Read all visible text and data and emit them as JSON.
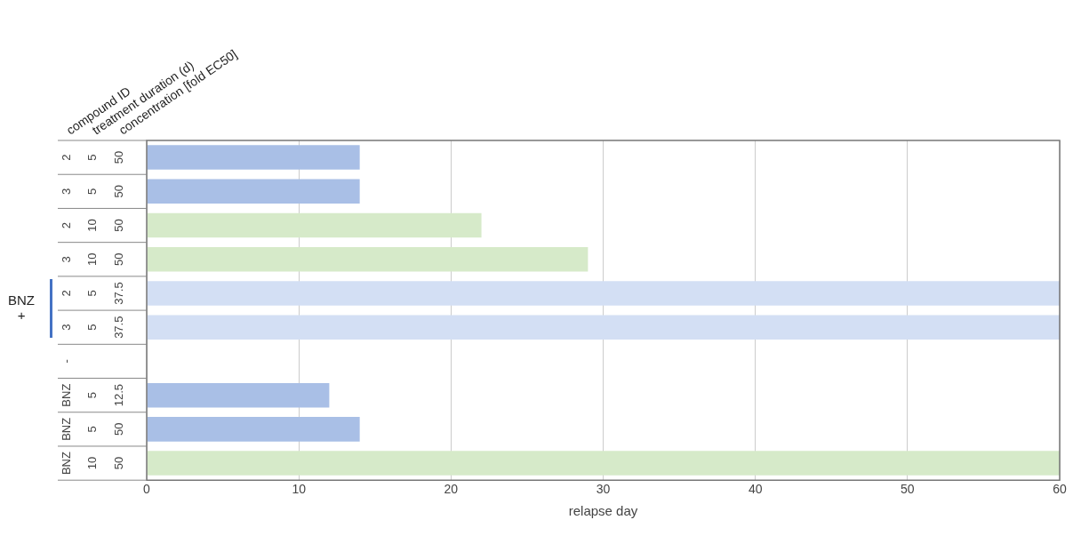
{
  "chart_data": {
    "type": "bar",
    "orientation": "horizontal",
    "categories": [
      "2 5 50",
      "3 5 50",
      "2 10 50",
      "3 10 50",
      "2 5 37.5",
      "3 5 37.5",
      "-",
      "BNZ 5 12.5",
      "BNZ 5 50",
      "BNZ 10 50"
    ],
    "values": [
      14,
      14,
      22,
      29,
      60,
      60,
      null,
      12,
      14,
      60
    ],
    "colors": [
      "#a9bfe6",
      "#a9bfe6",
      "#d6eac9",
      "#d6eac9",
      "#d3dff4",
      "#d3dff4",
      "#a9bfe6",
      "#a9bfe6",
      "#a9bfe6",
      "#d6eac9"
    ],
    "xlabel": "relapse day",
    "xlim": [
      0,
      60
    ],
    "xticks": [
      0,
      10,
      20,
      30,
      40,
      50,
      60
    ],
    "grid": "x",
    "legend": false,
    "annotations": [
      "compound ID",
      "treatment duration (d)",
      "concentration [fold EC50]",
      "BNZ +"
    ]
  }
}
